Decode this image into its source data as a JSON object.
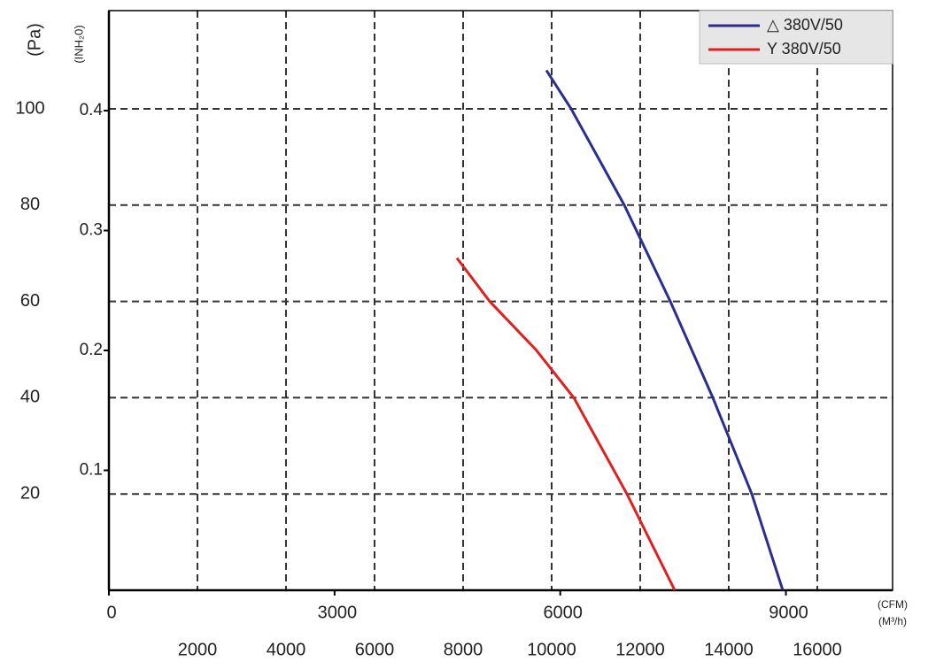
{
  "chart_data": {
    "type": "line",
    "x_label": "(M³/h)",
    "x2_label": "(CFM)",
    "y_label": "(Pa)",
    "y2_label": "(INH₂0)",
    "xlim": [
      0,
      17700
    ],
    "xticks": [
      2000,
      4000,
      6000,
      8000,
      10000,
      12000,
      14000,
      16000
    ],
    "x2lim": [
      0,
      10418
    ],
    "x2ticks": [
      0,
      3000,
      6000,
      9000
    ],
    "ylim": [
      0,
      120.4
    ],
    "yticks": [
      20,
      40,
      60,
      80,
      100
    ],
    "y2lim": [
      0,
      0.4834
    ],
    "y2ticks": [
      0.1,
      0.2,
      0.3,
      0.4
    ],
    "grid": true,
    "legend": "upper right",
    "series": [
      {
        "name": "△ 380V/50",
        "color": "#2b2e8f",
        "x": [
          9880,
          10440,
          11640,
          12680,
          13640,
          14520,
          15220
        ],
        "values": [
          108,
          100,
          80,
          60,
          40,
          20,
          0
        ]
      },
      {
        "name": "Y 380V/50",
        "color": "#e02020",
        "x": [
          7860,
          8600,
          9640,
          10500,
          11700,
          12780
        ],
        "values": [
          69,
          60,
          50,
          40,
          20,
          0
        ]
      }
    ]
  }
}
